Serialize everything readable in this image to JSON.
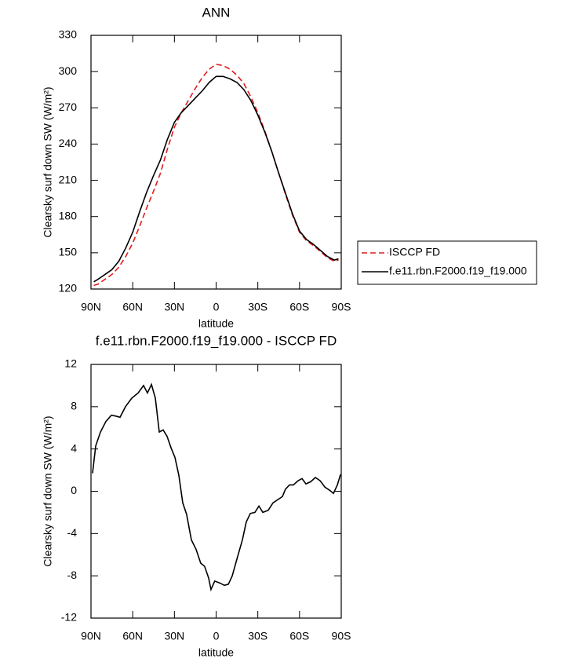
{
  "chart_data": [
    {
      "type": "line",
      "title": "ANN",
      "xlabel": "latitude",
      "ylabel": "Clearsky surf down SW (W/m²)",
      "x": [
        88,
        85,
        80,
        75,
        70,
        65,
        60,
        55,
        50,
        45,
        40,
        35,
        30,
        25,
        20,
        15,
        10,
        5,
        0,
        -5,
        -10,
        -15,
        -20,
        -25,
        -30,
        -35,
        -40,
        -45,
        -50,
        -55,
        -60,
        -65,
        -70,
        -75,
        -80,
        -85,
        -88
      ],
      "xlim": [
        90,
        -90
      ],
      "xticks": [
        {
          "value": 90,
          "label": "90N"
        },
        {
          "value": 60,
          "label": "60N"
        },
        {
          "value": 30,
          "label": "30N"
        },
        0,
        {
          "value": -30,
          "label": "30S"
        },
        {
          "value": -60,
          "label": "60S"
        },
        {
          "value": -90,
          "label": "90S"
        }
      ],
      "ylim": [
        120,
        330
      ],
      "yticks": [
        120,
        150,
        180,
        210,
        240,
        270,
        300,
        330
      ],
      "legend": "right",
      "series": [
        {
          "name": "ISCCP FD",
          "color": "#e41a1c",
          "linestyle": "dashed",
          "values": [
            123,
            124,
            128,
            132,
            138,
            147,
            158,
            172,
            187,
            201,
            216,
            236,
            254,
            266,
            276,
            286,
            295,
            302,
            306,
            305,
            302,
            297,
            290,
            279,
            266,
            251,
            234,
            216,
            198,
            181,
            167,
            160,
            156,
            151,
            146,
            143,
            144
          ]
        },
        {
          "name": "f.e11.rbn.F2000.f19_f19.000",
          "color": "#000000",
          "linestyle": "solid",
          "values": [
            126,
            128,
            132,
            136,
            143,
            154,
            167,
            184,
            200,
            214,
            227,
            244,
            258,
            266,
            272,
            278,
            284,
            291,
            296,
            296,
            294,
            291,
            285,
            276,
            264,
            250,
            234,
            216,
            199,
            182,
            168,
            161,
            157,
            152,
            147,
            144,
            145
          ]
        }
      ]
    },
    {
      "type": "line",
      "title": "f.e11.rbn.F2000.f19_f19.000 - ISCCP FD",
      "xlabel": "latitude",
      "ylabel": "Clearsky surf down SW (W/m²)",
      "x": [
        88.9,
        86.6,
        83.2,
        79.3,
        75.3,
        71.9,
        69.1,
        65.2,
        60.7,
        56.1,
        52.2,
        49.4,
        46.5,
        43.7,
        40.9,
        38.1,
        35.3,
        32.4,
        29.6,
        26.8,
        24,
        21.2,
        17.8,
        14.4,
        11.1,
        8.3,
        5.4,
        3.7,
        1,
        -3,
        -5.9,
        -8.8,
        -11.6,
        -15,
        -18.9,
        -21.7,
        -24.6,
        -27.9,
        -30.8,
        -33.6,
        -37.5,
        -40.9,
        -44.3,
        -47.7,
        -49.9,
        -52.8,
        -55.6,
        -59,
        -61.8,
        -64.6,
        -68,
        -71.4,
        -74.8,
        -78.2,
        -81.6,
        -84.4,
        -87.2,
        -89.5
      ],
      "xlim": [
        90,
        -90
      ],
      "xticks": [
        {
          "value": 90,
          "label": "90N"
        },
        {
          "value": 60,
          "label": "60N"
        },
        {
          "value": 30,
          "label": "30N"
        },
        0,
        {
          "value": -30,
          "label": "30S"
        },
        {
          "value": -60,
          "label": "60S"
        },
        {
          "value": -90,
          "label": "90S"
        }
      ],
      "ylim": [
        -12,
        12
      ],
      "yticks": [
        -12,
        -8,
        -4,
        0,
        4,
        8,
        12
      ],
      "series": [
        {
          "color": "#000000",
          "linestyle": "solid",
          "values": [
            1.7,
            4.3,
            5.6,
            6.6,
            7.2,
            7.1,
            7.0,
            8.0,
            8.8,
            9.3,
            10.0,
            9.3,
            10.1,
            8.8,
            5.6,
            5.8,
            5.2,
            4.1,
            3.2,
            1.5,
            -1.1,
            -2.2,
            -4.6,
            -5.5,
            -6.8,
            -7.1,
            -8.2,
            -9.3,
            -8.5,
            -8.7,
            -8.9,
            -8.8,
            -8.0,
            -6.4,
            -4.6,
            -2.9,
            -2.1,
            -2.0,
            -1.4,
            -2.0,
            -1.8,
            -1.1,
            -0.8,
            -0.5,
            0.2,
            0.6,
            0.6,
            1.0,
            1.2,
            0.7,
            0.9,
            1.3,
            1.0,
            0.4,
            0.1,
            -0.2,
            0.6,
            1.6
          ]
        }
      ]
    }
  ]
}
